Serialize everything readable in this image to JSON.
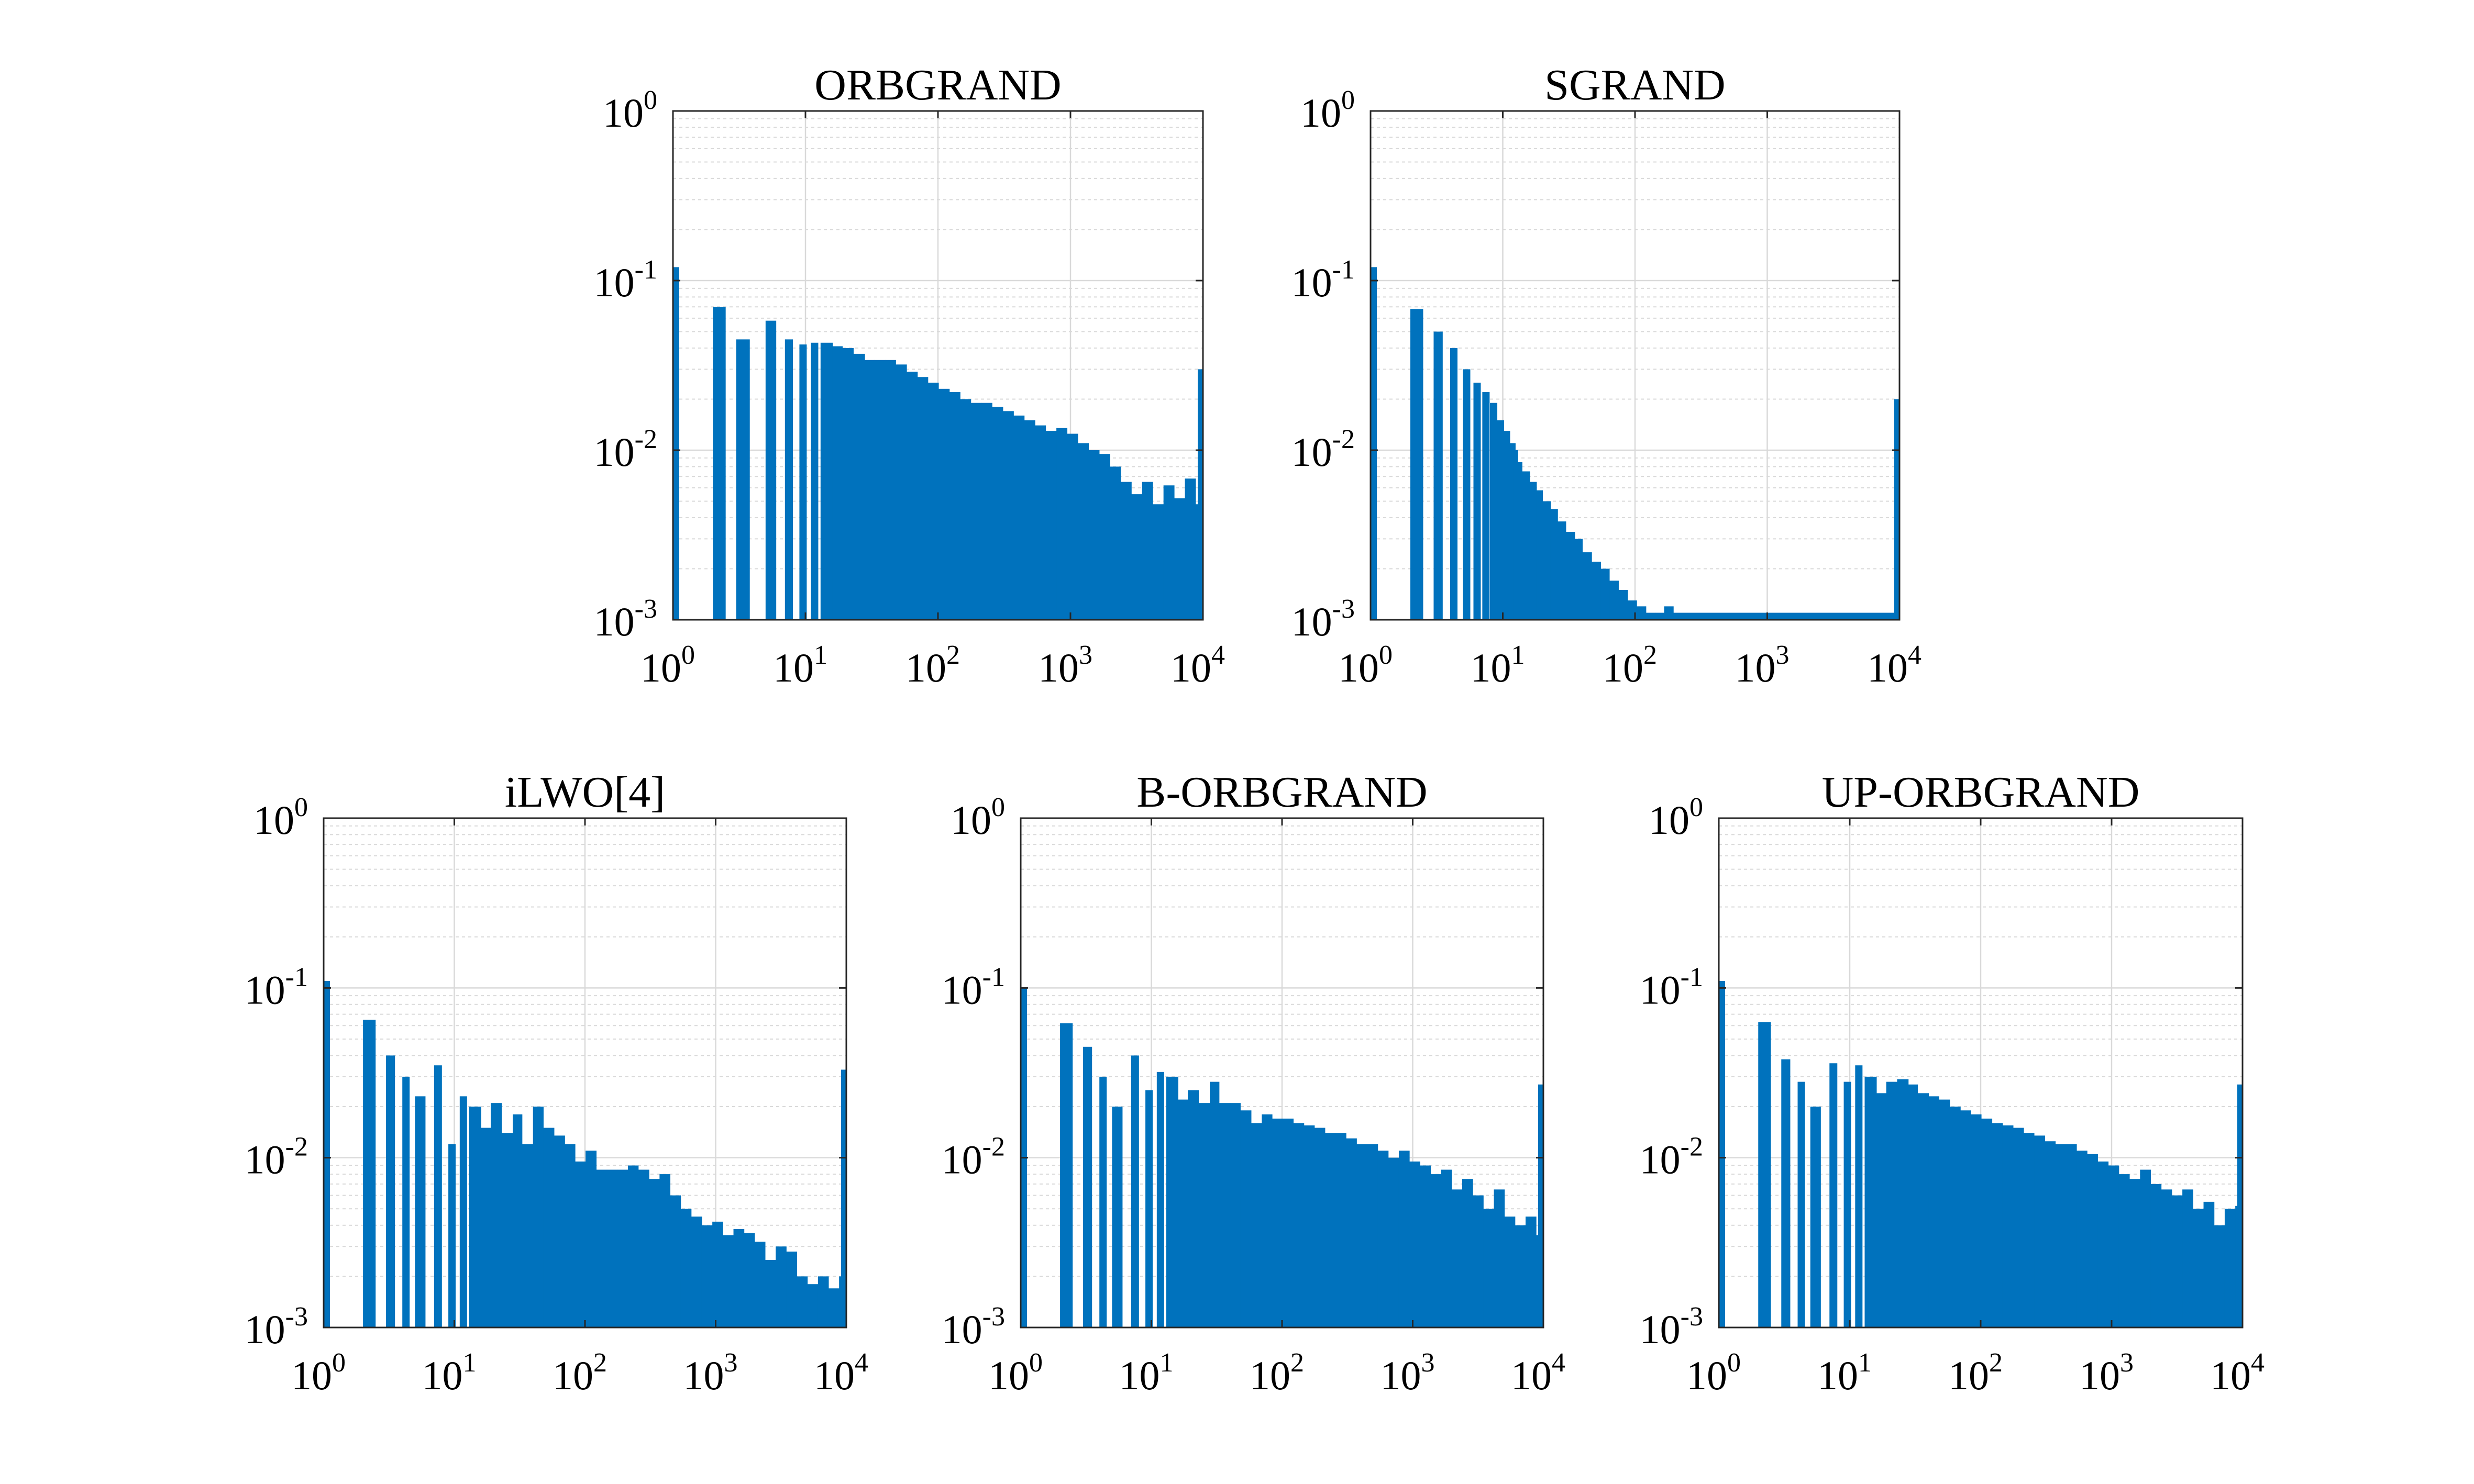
{
  "figure": {
    "bar_color": "#0072BD",
    "axis_color": "#262626",
    "grid_color": "#D9D9D9"
  },
  "chart_data": [
    {
      "type": "bar",
      "title": "ORBGRAND",
      "xscale": "log",
      "yscale": "log",
      "xlim": [
        1,
        10000
      ],
      "ylim": [
        0.001,
        1
      ],
      "xticks": [
        1,
        10,
        100,
        1000,
        10000
      ],
      "yticks": [
        0.001,
        0.01,
        0.1,
        1
      ],
      "xtick_labels": [
        {
          "base": "10",
          "exp": "0"
        },
        {
          "base": "10",
          "exp": "1"
        },
        {
          "base": "10",
          "exp": "2"
        },
        {
          "base": "10",
          "exp": "3"
        },
        {
          "base": "10",
          "exp": "4"
        }
      ],
      "ytick_labels": [
        {
          "base": "10",
          "exp": "-3"
        },
        {
          "base": "10",
          "exp": "-2"
        },
        {
          "base": "10",
          "exp": "-1"
        },
        {
          "base": "10",
          "exp": "0"
        }
      ],
      "grid": true,
      "x": [
        1,
        2,
        3,
        5,
        7,
        9,
        11,
        13,
        16,
        19,
        23,
        28,
        33,
        40,
        48,
        58,
        70,
        84,
        101,
        122,
        147,
        177,
        213,
        256,
        309,
        372,
        448,
        540,
        650,
        783,
        943,
        1136,
        1369,
        1649,
        1986,
        2392,
        2882,
        3471,
        4181,
        5037,
        6067,
        7308,
        8803,
        10000
      ],
      "values": [
        0.12,
        0.07,
        0.045,
        0.058,
        0.045,
        0.042,
        0.043,
        0.043,
        0.041,
        0.04,
        0.037,
        0.034,
        0.034,
        0.034,
        0.032,
        0.029,
        0.027,
        0.025,
        0.023,
        0.022,
        0.02,
        0.019,
        0.019,
        0.018,
        0.017,
        0.016,
        0.015,
        0.014,
        0.013,
        0.0135,
        0.0125,
        0.011,
        0.01,
        0.0095,
        0.008,
        0.0065,
        0.0055,
        0.0065,
        0.0048,
        0.0062,
        0.0052,
        0.0068,
        0.0048,
        0.03
      ]
    },
    {
      "type": "bar",
      "title": "SGRAND",
      "xscale": "log",
      "yscale": "log",
      "xlim": [
        1,
        10000
      ],
      "ylim": [
        0.001,
        1
      ],
      "xticks": [
        1,
        10,
        100,
        1000,
        10000
      ],
      "yticks": [
        0.001,
        0.01,
        0.1,
        1
      ],
      "xtick_labels": [
        {
          "base": "10",
          "exp": "0"
        },
        {
          "base": "10",
          "exp": "1"
        },
        {
          "base": "10",
          "exp": "2"
        },
        {
          "base": "10",
          "exp": "3"
        },
        {
          "base": "10",
          "exp": "4"
        }
      ],
      "ytick_labels": [
        {
          "base": "10",
          "exp": "-3"
        },
        {
          "base": "10",
          "exp": "-2"
        },
        {
          "base": "10",
          "exp": "-1"
        },
        {
          "base": "10",
          "exp": "0"
        }
      ],
      "grid": true,
      "x": [
        1,
        2,
        3,
        4,
        5,
        6,
        7,
        8,
        9,
        10,
        11,
        12,
        13,
        14,
        16,
        18,
        20,
        23,
        26,
        30,
        35,
        40,
        47,
        55,
        64,
        75,
        88,
        103,
        121,
        142,
        166,
        195,
        10000
      ],
      "values": [
        0.12,
        0.068,
        0.05,
        0.04,
        0.03,
        0.025,
        0.022,
        0.019,
        0.015,
        0.013,
        0.011,
        0.01,
        0.0085,
        0.0075,
        0.0065,
        0.0058,
        0.005,
        0.0045,
        0.0038,
        0.0033,
        0.003,
        0.0025,
        0.0022,
        0.002,
        0.0017,
        0.0015,
        0.0013,
        0.0012,
        0.0011,
        0.0011,
        0.0012,
        0.0011,
        0.02
      ]
    },
    {
      "type": "bar",
      "title": "iLWO[4]",
      "xscale": "log",
      "yscale": "log",
      "xlim": [
        1,
        10000
      ],
      "ylim": [
        0.001,
        1
      ],
      "xticks": [
        1,
        10,
        100,
        1000,
        10000
      ],
      "yticks": [
        0.001,
        0.01,
        0.1,
        1
      ],
      "xtick_labels": [
        {
          "base": "10",
          "exp": "0"
        },
        {
          "base": "10",
          "exp": "1"
        },
        {
          "base": "10",
          "exp": "2"
        },
        {
          "base": "10",
          "exp": "3"
        },
        {
          "base": "10",
          "exp": "4"
        }
      ],
      "ytick_labels": [
        {
          "base": "10",
          "exp": "-3"
        },
        {
          "base": "10",
          "exp": "-2"
        },
        {
          "base": "10",
          "exp": "-1"
        },
        {
          "base": "10",
          "exp": "0"
        }
      ],
      "grid": true,
      "x": [
        1,
        2,
        3,
        4,
        5,
        7,
        9,
        11,
        13,
        16,
        19,
        23,
        28,
        33,
        40,
        48,
        58,
        70,
        84,
        101,
        122,
        147,
        177,
        213,
        256,
        309,
        372,
        448,
        540,
        650,
        783,
        943,
        1136,
        1369,
        1649,
        1986,
        2392,
        2882,
        3471,
        4181,
        5037,
        6067,
        7308,
        8803,
        10000
      ],
      "values": [
        0.11,
        0.065,
        0.04,
        0.03,
        0.023,
        0.035,
        0.012,
        0.023,
        0.02,
        0.015,
        0.021,
        0.014,
        0.018,
        0.012,
        0.02,
        0.015,
        0.0135,
        0.012,
        0.0095,
        0.011,
        0.0085,
        0.0085,
        0.0085,
        0.009,
        0.0085,
        0.0075,
        0.008,
        0.006,
        0.005,
        0.0045,
        0.004,
        0.0042,
        0.0035,
        0.0038,
        0.0036,
        0.0032,
        0.0025,
        0.003,
        0.0028,
        0.002,
        0.0018,
        0.002,
        0.0017,
        0.002,
        0.033
      ]
    },
    {
      "type": "bar",
      "title": "B-ORBGRAND",
      "xscale": "log",
      "yscale": "log",
      "xlim": [
        1,
        10000
      ],
      "ylim": [
        0.001,
        1
      ],
      "xticks": [
        1,
        10,
        100,
        1000,
        10000
      ],
      "yticks": [
        0.001,
        0.01,
        0.1,
        1
      ],
      "xtick_labels": [
        {
          "base": "10",
          "exp": "0"
        },
        {
          "base": "10",
          "exp": "1"
        },
        {
          "base": "10",
          "exp": "2"
        },
        {
          "base": "10",
          "exp": "3"
        },
        {
          "base": "10",
          "exp": "4"
        }
      ],
      "ytick_labels": [
        {
          "base": "10",
          "exp": "-3"
        },
        {
          "base": "10",
          "exp": "-2"
        },
        {
          "base": "10",
          "exp": "-1"
        },
        {
          "base": "10",
          "exp": "0"
        }
      ],
      "grid": true,
      "x": [
        1,
        2,
        3,
        4,
        5,
        7,
        9,
        11,
        13,
        16,
        19,
        23,
        28,
        33,
        40,
        48,
        58,
        70,
        84,
        101,
        122,
        147,
        177,
        213,
        256,
        309,
        372,
        448,
        540,
        650,
        783,
        943,
        1136,
        1369,
        1649,
        1986,
        2392,
        2882,
        3471,
        4181,
        5037,
        6067,
        7308,
        8803,
        10000
      ],
      "values": [
        0.1,
        0.062,
        0.045,
        0.03,
        0.02,
        0.04,
        0.025,
        0.032,
        0.03,
        0.022,
        0.025,
        0.021,
        0.028,
        0.021,
        0.021,
        0.019,
        0.016,
        0.018,
        0.017,
        0.017,
        0.016,
        0.0155,
        0.015,
        0.014,
        0.014,
        0.013,
        0.012,
        0.012,
        0.011,
        0.01,
        0.011,
        0.0095,
        0.009,
        0.008,
        0.0085,
        0.0065,
        0.0075,
        0.006,
        0.005,
        0.0065,
        0.0045,
        0.004,
        0.0045,
        0.0035,
        0.027
      ]
    },
    {
      "type": "bar",
      "title": "UP-ORBGRAND",
      "xscale": "log",
      "yscale": "log",
      "xlim": [
        1,
        10000
      ],
      "ylim": [
        0.001,
        1
      ],
      "xticks": [
        1,
        10,
        100,
        1000,
        10000
      ],
      "yticks": [
        0.001,
        0.01,
        0.1,
        1
      ],
      "xtick_labels": [
        {
          "base": "10",
          "exp": "0"
        },
        {
          "base": "10",
          "exp": "1"
        },
        {
          "base": "10",
          "exp": "2"
        },
        {
          "base": "10",
          "exp": "3"
        },
        {
          "base": "10",
          "exp": "4"
        }
      ],
      "ytick_labels": [
        {
          "base": "10",
          "exp": "-3"
        },
        {
          "base": "10",
          "exp": "-2"
        },
        {
          "base": "10",
          "exp": "-1"
        },
        {
          "base": "10",
          "exp": "0"
        }
      ],
      "grid": true,
      "x": [
        1,
        2,
        3,
        4,
        5,
        7,
        9,
        11,
        13,
        16,
        19,
        23,
        28,
        33,
        40,
        48,
        58,
        70,
        84,
        101,
        122,
        147,
        177,
        213,
        256,
        309,
        372,
        448,
        540,
        650,
        783,
        943,
        1136,
        1369,
        1649,
        1986,
        2392,
        2882,
        3471,
        4181,
        5037,
        6067,
        7308,
        8803,
        10000
      ],
      "values": [
        0.11,
        0.063,
        0.038,
        0.028,
        0.02,
        0.036,
        0.028,
        0.035,
        0.03,
        0.024,
        0.028,
        0.029,
        0.027,
        0.024,
        0.023,
        0.022,
        0.02,
        0.019,
        0.018,
        0.017,
        0.016,
        0.0155,
        0.015,
        0.014,
        0.0135,
        0.0125,
        0.012,
        0.012,
        0.011,
        0.0105,
        0.0095,
        0.009,
        0.008,
        0.0075,
        0.0085,
        0.007,
        0.0065,
        0.006,
        0.0065,
        0.005,
        0.0055,
        0.004,
        0.005,
        0.0052,
        0.027
      ]
    }
  ]
}
